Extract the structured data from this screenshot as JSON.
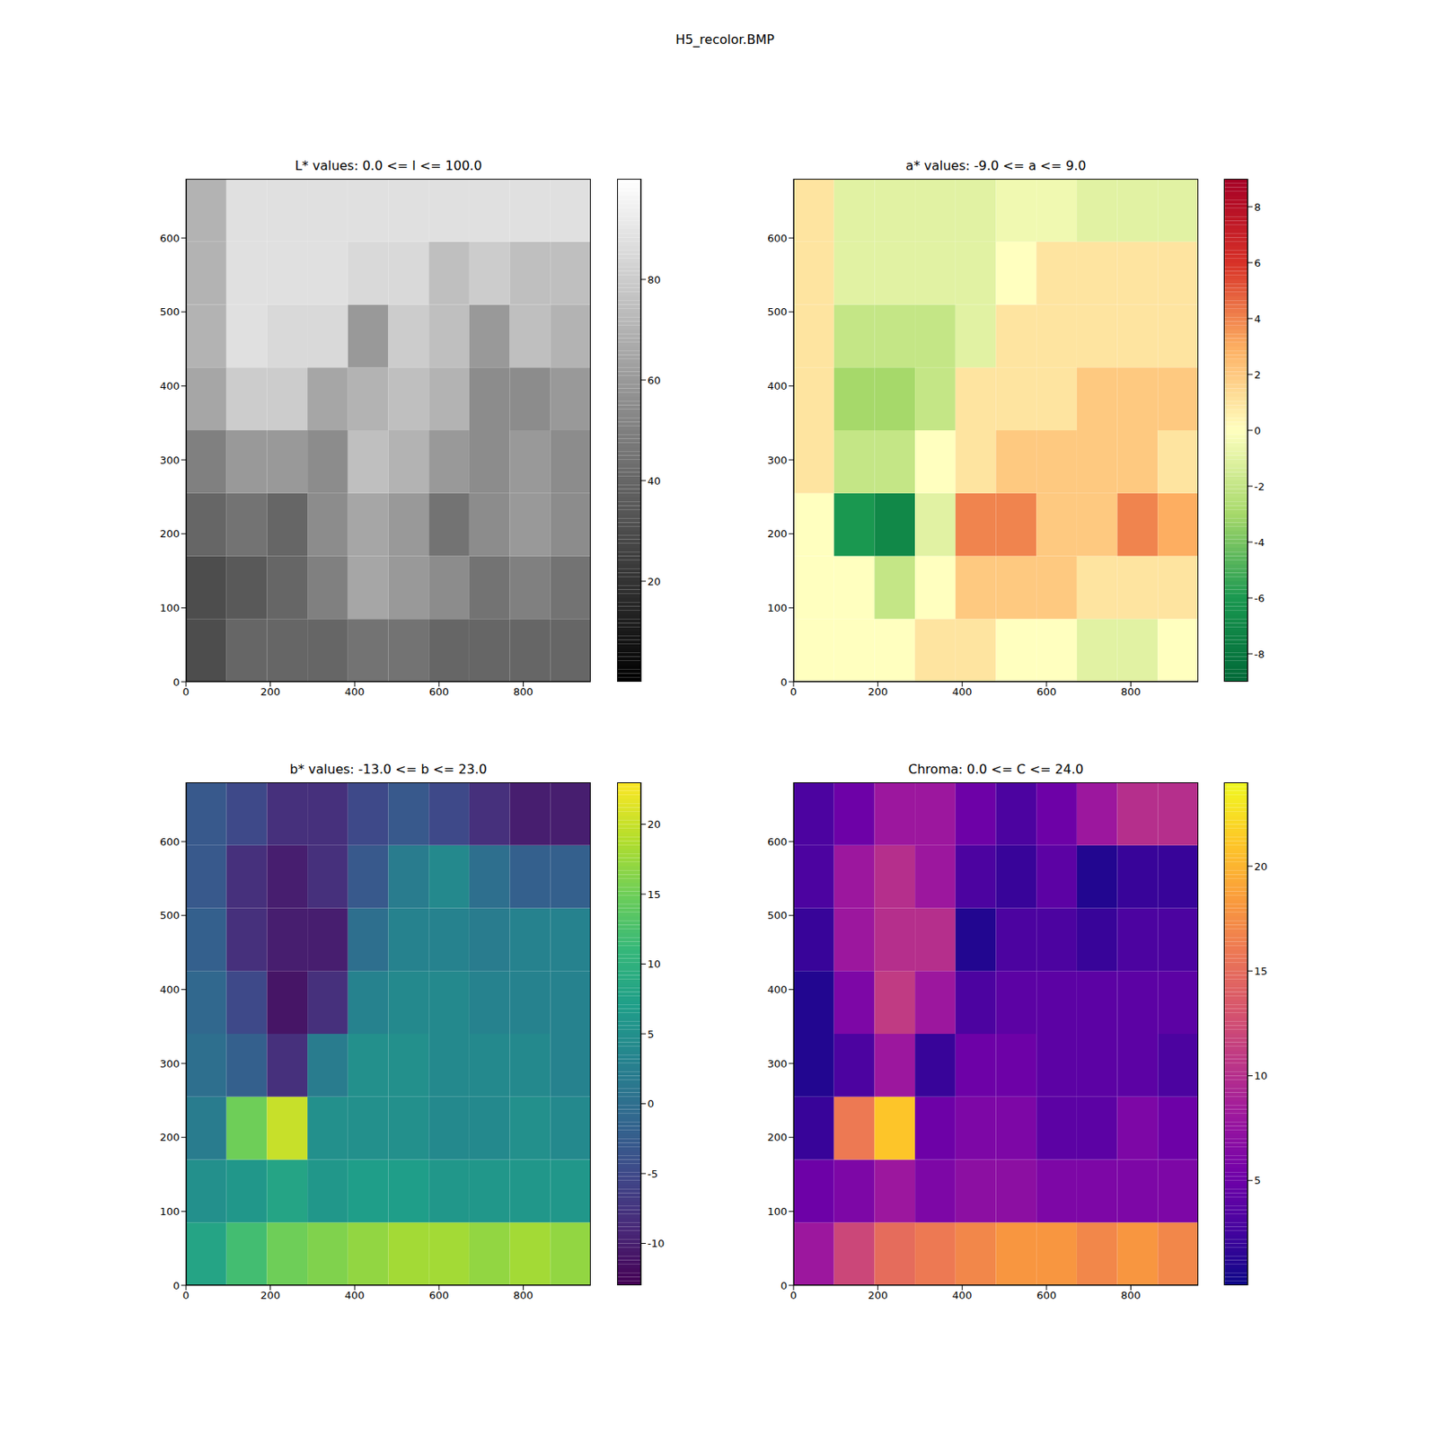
{
  "title": "H5_recolor.BMP",
  "chart_data": [
    {
      "type": "heatmap",
      "title": "L* values: 0.0 <= l <= 100.0",
      "x_edges": [
        0,
        96,
        192,
        288,
        384,
        480,
        576,
        672,
        768,
        864,
        960
      ],
      "y_edges": [
        0,
        85,
        170,
        255,
        340,
        425,
        510,
        595,
        680
      ],
      "cells": [
        [
          30,
          40,
          40,
          40,
          45,
          45,
          40,
          40,
          40,
          40
        ],
        [
          30,
          35,
          40,
          50,
          65,
          60,
          55,
          45,
          50,
          45
        ],
        [
          40,
          45,
          40,
          55,
          65,
          60,
          45,
          55,
          60,
          55
        ],
        [
          50,
          60,
          60,
          55,
          75,
          70,
          60,
          55,
          60,
          55
        ],
        [
          65,
          80,
          80,
          65,
          70,
          75,
          70,
          55,
          55,
          60
        ],
        [
          70,
          88,
          85,
          85,
          60,
          80,
          75,
          60,
          75,
          70
        ],
        [
          70,
          88,
          88,
          88,
          85,
          85,
          75,
          80,
          75,
          75
        ],
        [
          70,
          88,
          88,
          88,
          88,
          88,
          88,
          88,
          88,
          88
        ]
      ],
      "xlim": [
        0,
        960
      ],
      "ylim": [
        0,
        680
      ],
      "xticks": [
        0,
        200,
        400,
        600,
        800
      ],
      "yticks": [
        0,
        100,
        200,
        300,
        400,
        500,
        600
      ],
      "colorbar": {
        "range": [
          0,
          100
        ],
        "ticks": [
          20,
          40,
          60,
          80
        ]
      }
    },
    {
      "type": "heatmap",
      "title": "a* values: -9.0 <= a <= 9.0",
      "x_edges": [
        0,
        96,
        192,
        288,
        384,
        480,
        576,
        672,
        768,
        864,
        960
      ],
      "y_edges": [
        0,
        85,
        170,
        255,
        340,
        425,
        510,
        595,
        680
      ],
      "cells": [
        [
          0,
          0,
          0,
          1,
          1,
          0,
          0,
          -1,
          -1,
          0
        ],
        [
          0,
          0,
          -2,
          0,
          2,
          2,
          2,
          1,
          1,
          1
        ],
        [
          0,
          -6,
          -7,
          -1,
          4,
          4,
          2,
          2,
          4,
          3
        ],
        [
          1,
          -2,
          -2,
          0,
          1,
          2,
          2,
          2,
          2,
          1
        ],
        [
          1,
          -3,
          -3,
          -2,
          1,
          1,
          1,
          2,
          2,
          2
        ],
        [
          1,
          -2,
          -2,
          -2,
          -1,
          1,
          1,
          1,
          1,
          1
        ],
        [
          1,
          -1,
          -1,
          -1,
          -1,
          0,
          1,
          1,
          1,
          1
        ],
        [
          1,
          -1,
          -1,
          -1,
          -1,
          -0.5,
          -0.5,
          -1,
          -1,
          -1
        ]
      ],
      "xlim": [
        0,
        960
      ],
      "ylim": [
        0,
        680
      ],
      "xticks": [
        0,
        200,
        400,
        600,
        800
      ],
      "yticks": [
        0,
        100,
        200,
        300,
        400,
        500,
        600
      ],
      "colorbar": {
        "range": [
          -9,
          9
        ],
        "ticks": [
          -8,
          -6,
          -4,
          -2,
          0,
          2,
          4,
          6,
          8
        ]
      }
    },
    {
      "type": "heatmap",
      "title": "b* values: -13.0 <= b <= 23.0",
      "x_edges": [
        0,
        96,
        192,
        288,
        384,
        480,
        576,
        672,
        768,
        864,
        960
      ],
      "y_edges": [
        0,
        85,
        170,
        255,
        340,
        425,
        510,
        595,
        680
      ],
      "cells": [
        [
          8,
          12,
          15,
          16,
          17,
          18,
          18,
          17,
          18,
          17
        ],
        [
          5,
          6,
          8,
          6,
          7,
          7,
          6,
          6,
          6,
          6
        ],
        [
          2,
          15,
          20,
          5,
          5,
          5,
          4,
          4,
          5,
          4
        ],
        [
          0,
          -2,
          -8,
          2,
          5,
          5,
          4,
          4,
          4,
          3
        ],
        [
          -1,
          -5,
          -11,
          -8,
          3,
          4,
          4,
          3,
          3,
          3
        ],
        [
          -2,
          -8,
          -10,
          -10,
          0,
          3,
          3,
          2,
          3,
          3
        ],
        [
          -3,
          -8,
          -10,
          -8,
          -3,
          2,
          4,
          0,
          -2,
          -2
        ],
        [
          -3,
          -5,
          -8,
          -8,
          -5,
          -3,
          -5,
          -8,
          -10,
          -10
        ]
      ],
      "xlim": [
        0,
        960
      ],
      "ylim": [
        0,
        680
      ],
      "xticks": [
        0,
        200,
        400,
        600,
        800
      ],
      "yticks": [
        0,
        100,
        200,
        300,
        400,
        500,
        600
      ],
      "colorbar": {
        "range": [
          -13,
          23
        ],
        "ticks": [
          -10,
          -5,
          0,
          5,
          10,
          15,
          20
        ]
      }
    },
    {
      "type": "heatmap",
      "title": "Chroma: 0.0 <= C <= 24.0",
      "x_edges": [
        0,
        96,
        192,
        288,
        384,
        480,
        576,
        672,
        768,
        864,
        960
      ],
      "y_edges": [
        0,
        85,
        170,
        255,
        340,
        425,
        510,
        595,
        680
      ],
      "cells": [
        [
          8,
          12,
          15,
          16,
          17,
          18,
          18,
          17,
          18,
          17
        ],
        [
          5,
          6,
          8,
          6,
          7,
          7,
          6,
          6,
          6,
          6
        ],
        [
          2,
          16,
          21,
          5,
          6,
          6,
          4,
          4,
          6,
          5
        ],
        [
          1,
          3,
          8,
          2,
          5,
          5,
          4,
          4,
          4,
          3
        ],
        [
          1,
          6,
          11,
          8,
          3,
          4,
          4,
          4,
          4,
          4
        ],
        [
          2,
          8,
          10,
          10,
          1,
          3,
          3,
          2,
          3,
          3
        ],
        [
          3,
          8,
          10,
          8,
          3,
          2,
          4,
          1,
          2,
          2
        ],
        [
          3,
          5,
          8,
          8,
          5,
          3,
          5,
          8,
          10,
          10
        ]
      ],
      "xlim": [
        0,
        960
      ],
      "ylim": [
        0,
        680
      ],
      "xticks": [
        0,
        200,
        400,
        600,
        800
      ],
      "yticks": [
        0,
        100,
        200,
        300,
        400,
        500,
        600
      ],
      "colorbar": {
        "range": [
          0,
          24
        ],
        "ticks": [
          5,
          10,
          15,
          20
        ]
      }
    }
  ]
}
